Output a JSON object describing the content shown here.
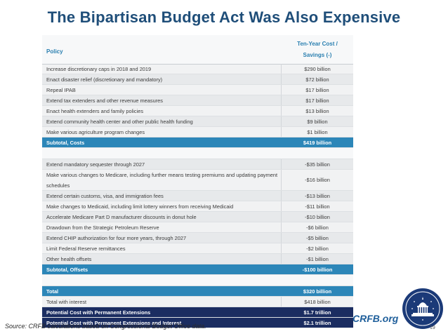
{
  "title": "The Bipartisan Budget Act Was Also Expensive",
  "table": {
    "header_policy": "Policy",
    "header_cost_line1": "Ten-Year Cost /",
    "header_cost_line2": "Savings (-)",
    "rows": [
      {
        "policy": "Increase discretionary caps in 2018 and 2019",
        "value": "$290 billion"
      },
      {
        "policy": "Enact disaster relief (discretionary and mandatory)",
        "value": "$72 billion"
      },
      {
        "policy": "Repeal IPAB",
        "value": "$17 billion"
      },
      {
        "policy": "Extend tax extenders and other revenue measures",
        "value": "$17 billion"
      },
      {
        "policy": "Enact health extenders and family policies",
        "value": "$13 billion"
      },
      {
        "policy": "Extend community health center and other public health funding",
        "value": "$9 billion"
      },
      {
        "policy": "Make various agriculture program changes",
        "value": "$1 billion"
      },
      {
        "policy": "Subtotal, Costs",
        "value": "$419 billion"
      },
      {
        "policy": "",
        "value": ""
      },
      {
        "policy": "Extend mandatory sequester through 2027",
        "value": "-$35 billion"
      },
      {
        "policy": "Make various changes to Medicare, including further means testing premiums and updating payment schedules",
        "value": "-$16 billion"
      },
      {
        "policy": "Extend certain customs, visa, and immigration fees",
        "value": "-$13 billion"
      },
      {
        "policy": "Make changes to Medicaid, including limit lottery winners from receiving Medicaid",
        "value": "-$11 billion"
      },
      {
        "policy": "Accelerate Medicare Part D manufacturer discounts in donut hole",
        "value": "-$10 billion"
      },
      {
        "policy": "Drawdown from the Strategic Petroleum Reserve",
        "value": "-$6 billion"
      },
      {
        "policy": "Extend CHIP authorization for four more years, through 2027",
        "value": "-$5 billion"
      },
      {
        "policy": "Limit Federal Reserve remittances",
        "value": "-$2 billion"
      },
      {
        "policy": "Other health offsets",
        "value": "-$1 billion"
      },
      {
        "policy": "Subtotal, Offsets",
        "value": "-$100 billion"
      },
      {
        "policy": "",
        "value": ""
      },
      {
        "policy": "Total",
        "value": "$320 billion"
      },
      {
        "policy": "Total with interest",
        "value": "$418 billion"
      },
      {
        "policy": "Potential Cost with Permanent Extensions",
        "value": "$1.7 trillion"
      },
      {
        "policy": "Potential Cost with Permanent Extensions and Interest",
        "value": "$2.1 trillion"
      }
    ]
  },
  "source": "Source: CRFB calculations based on Congressional Budget Office data.",
  "brand": "CRFB.org",
  "page_number": "19",
  "colors": {
    "title": "#1f4e79",
    "subtotal": "#2c86b8",
    "dark_total": "#1b2d61",
    "header_text": "#2a7fb0"
  }
}
